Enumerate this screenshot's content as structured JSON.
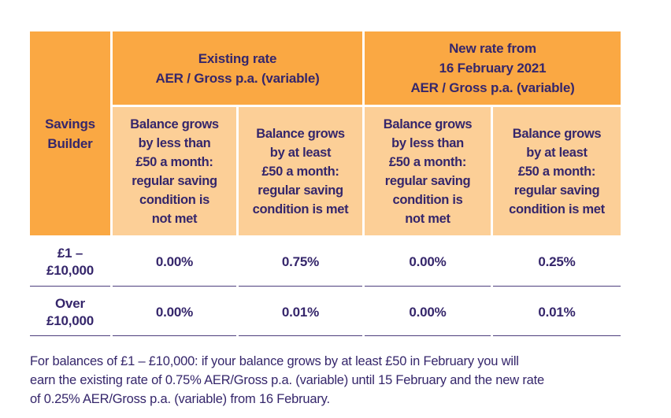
{
  "colors": {
    "header-orange": "#FAA843",
    "subheader-orange": "#FCCF97",
    "ink": "#35266B",
    "rule": "#4D3E7D",
    "page-bg": "#FFFFFF"
  },
  "table": {
    "product": "Savings\nBuilder",
    "group_headers": [
      "Existing rate\nAER / Gross p.a. (variable)",
      "New rate from\n16 February 2021\nAER / Gross p.a. (variable)"
    ],
    "condition_headers": [
      "Balance grows\nby less than\n£50 a month:\nregular saving\ncondition is\nnot met",
      "Balance grows\nby at least\n£50 a month:\nregular saving\ncondition is met",
      "Balance grows\nby less than\n£50 a month:\nregular saving\ncondition is\nnot met",
      "Balance grows\nby at least\n£50 a month:\nregular saving\ncondition is met"
    ],
    "rows": [
      {
        "label": "£1 –\n£10,000",
        "values": [
          "0.00%",
          "0.75%",
          "0.00%",
          "0.25%"
        ]
      },
      {
        "label": "Over\n£10,000",
        "values": [
          "0.00%",
          "0.01%",
          "0.00%",
          "0.01%"
        ]
      }
    ]
  },
  "footnote": "For balances of £1 – £10,000: if your balance grows by at least £50 in February you will\nearn the existing rate of 0.75% AER/Gross p.a. (variable) until 15 February and the new rate\nof 0.25% AER/Gross p.a. (variable) from 16 February."
}
